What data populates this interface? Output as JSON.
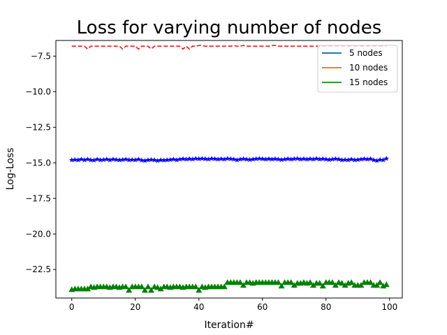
{
  "chart_data": {
    "type": "line",
    "title": "Loss for varying number of nodes",
    "xlabel": "Iteration#",
    "ylabel": "Log-Loss",
    "xlim": [
      -5,
      104
    ],
    "ylim": [
      -24.5,
      -6.4
    ],
    "x_ticks": [
      0,
      20,
      40,
      60,
      80,
      100
    ],
    "y_ticks": [
      -22.5,
      -20.0,
      -17.5,
      -15.0,
      -12.5,
      -10.0,
      -7.5
    ],
    "y_tick_labels": [
      "−22.5",
      "−20.0",
      "−17.5",
      "−15.0",
      "−12.5",
      "−10.0",
      "−7.5"
    ],
    "grid": false,
    "legend_position": "top-right",
    "legend": [
      {
        "label": "5 nodes",
        "color": "#1f77b4"
      },
      {
        "label": "10 nodes",
        "color": "#ff7f0e"
      },
      {
        "label": "15 nodes",
        "color": "#2ca02c"
      }
    ],
    "overlay_lines": [
      {
        "name": "red-dashed",
        "color": "#ff0000",
        "style": "dashed",
        "x_start": 0,
        "x_end": 99,
        "values": [
          -6.8,
          -6.8,
          -6.8,
          -6.8,
          -6.8,
          -7.0,
          -6.8,
          -6.8,
          -6.8,
          -6.8,
          -6.8,
          -6.8,
          -6.8,
          -6.8,
          -6.8,
          -6.8,
          -7.0,
          -6.8,
          -6.8,
          -6.8,
          -6.8,
          -7.0,
          -6.8,
          -6.8,
          -6.8,
          -7.0,
          -6.8,
          -6.8,
          -6.8,
          -6.8,
          -6.8,
          -6.8,
          -6.8,
          -6.8,
          -6.8,
          -7.0,
          -6.8,
          -7.0,
          -6.8,
          -6.8,
          -6.75,
          -6.75,
          -6.8,
          -6.8,
          -6.8,
          -6.8,
          -6.8,
          -6.8,
          -6.8,
          -6.8,
          -6.8,
          -6.75,
          -6.8,
          -6.8,
          -6.75,
          -6.8,
          -6.8,
          -6.8,
          -6.8,
          -6.8,
          -6.8,
          -6.8,
          -6.8,
          -6.75,
          -6.75,
          -6.8,
          -6.8,
          -6.8,
          -6.8,
          -6.8,
          -6.8,
          -6.8,
          -6.8,
          -6.8,
          -6.8,
          -6.8,
          -6.8,
          -6.8,
          -6.8,
          -6.8,
          -6.8,
          -6.8,
          -6.8,
          -6.8,
          -6.8,
          -6.8,
          -6.8,
          -6.8,
          -6.8,
          -6.8,
          -6.8,
          -6.8,
          -6.8,
          -6.8,
          -6.8,
          -6.8,
          -6.8,
          -6.8,
          -6.8,
          -6.8
        ]
      },
      {
        "name": "blue-star",
        "color": "#0000ff",
        "style": "solid",
        "marker": "star",
        "x_start": 0,
        "x_end": 99,
        "values": [
          -14.8,
          -14.78,
          -14.8,
          -14.75,
          -14.8,
          -14.75,
          -14.8,
          -14.82,
          -14.75,
          -14.8,
          -14.78,
          -14.75,
          -14.8,
          -14.75,
          -14.78,
          -14.8,
          -14.78,
          -14.75,
          -14.8,
          -14.78,
          -14.8,
          -14.75,
          -14.82,
          -14.85,
          -14.8,
          -14.78,
          -14.8,
          -14.85,
          -14.8,
          -14.82,
          -14.8,
          -14.78,
          -14.75,
          -14.8,
          -14.75,
          -14.72,
          -14.75,
          -14.72,
          -14.75,
          -14.7,
          -14.72,
          -14.7,
          -14.72,
          -14.75,
          -14.7,
          -14.72,
          -14.75,
          -14.72,
          -14.75,
          -14.7,
          -14.72,
          -14.75,
          -14.8,
          -14.75,
          -14.72,
          -14.75,
          -14.78,
          -14.75,
          -14.72,
          -14.7,
          -14.72,
          -14.75,
          -14.72,
          -14.75,
          -14.72,
          -14.75,
          -14.78,
          -14.75,
          -14.72,
          -14.75,
          -14.72,
          -14.7,
          -14.75,
          -14.72,
          -14.75,
          -14.72,
          -14.75,
          -14.7,
          -14.75,
          -14.72,
          -14.75,
          -14.78,
          -14.75,
          -14.72,
          -14.75,
          -14.8,
          -14.78,
          -14.8,
          -14.75,
          -14.8,
          -14.78,
          -14.75,
          -14.72,
          -14.75,
          -14.72,
          -14.8,
          -14.85,
          -14.78,
          -14.8,
          -14.7
        ]
      },
      {
        "name": "green-triangle",
        "color": "#008000",
        "style": "markers-only",
        "marker": "triangle",
        "x_start": 0,
        "x_end": 99,
        "values": [
          -23.9,
          -23.85,
          -23.85,
          -23.85,
          -23.85,
          -23.85,
          -23.7,
          -23.75,
          -23.7,
          -23.7,
          -23.7,
          -23.7,
          -23.75,
          -23.7,
          -23.7,
          -23.75,
          -23.7,
          -23.7,
          -23.95,
          -23.7,
          -23.7,
          -23.7,
          -23.7,
          -23.95,
          -23.7,
          -23.95,
          -23.7,
          -23.75,
          -23.85,
          -23.7,
          -23.7,
          -23.75,
          -23.7,
          -23.7,
          -23.7,
          -23.75,
          -23.7,
          -23.7,
          -23.7,
          -23.7,
          -23.95,
          -23.7,
          -23.75,
          -23.7,
          -23.7,
          -23.7,
          -23.7,
          -23.7,
          -23.7,
          -23.4,
          -23.4,
          -23.4,
          -23.4,
          -23.4,
          -23.6,
          -23.4,
          -23.4,
          -23.45,
          -23.4,
          -23.4,
          -23.4,
          -23.4,
          -23.4,
          -23.4,
          -23.4,
          -23.4,
          -23.65,
          -23.4,
          -23.4,
          -23.4,
          -23.6,
          -23.45,
          -23.45,
          -23.4,
          -23.45,
          -23.4,
          -23.6,
          -23.45,
          -23.45,
          -23.65,
          -23.4,
          -23.4,
          -23.4,
          -23.6,
          -23.4,
          -23.45,
          -23.6,
          -23.45,
          -23.4,
          -23.6,
          -23.6,
          -23.6,
          -23.4,
          -23.4,
          -23.4,
          -23.6,
          -23.6,
          -23.4,
          -23.65,
          -23.55
        ]
      }
    ]
  }
}
